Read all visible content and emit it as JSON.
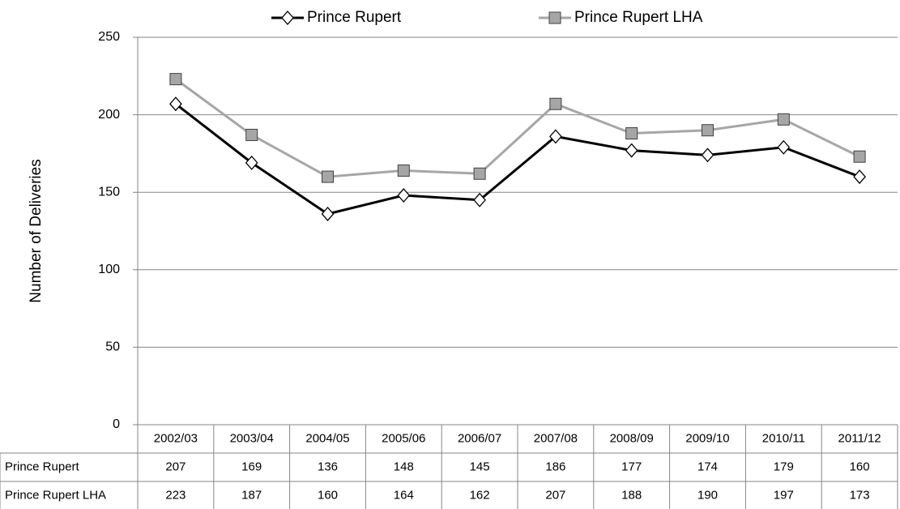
{
  "chart_data": {
    "type": "line",
    "y_label": "Number of Deliveries",
    "categories": [
      "2002/03",
      "2003/04",
      "2004/05",
      "2005/06",
      "2006/07",
      "2007/08",
      "2008/09",
      "2009/10",
      "2010/11",
      "2011/12"
    ],
    "series": [
      {
        "name": "Prince Rupert",
        "color": "#000000",
        "marker": "diamond",
        "values": [
          207,
          169,
          136,
          148,
          145,
          186,
          177,
          174,
          179,
          160
        ]
      },
      {
        "name": "Prince Rupert LHA",
        "color": "#a6a6a6",
        "marker": "square",
        "values": [
          223,
          187,
          160,
          164,
          162,
          207,
          188,
          190,
          197,
          173
        ]
      }
    ],
    "ylim": [
      0,
      250
    ],
    "yticks": [
      0,
      50,
      100,
      150,
      200,
      250
    ],
    "grid": true,
    "legend": "top",
    "data_table": true
  }
}
